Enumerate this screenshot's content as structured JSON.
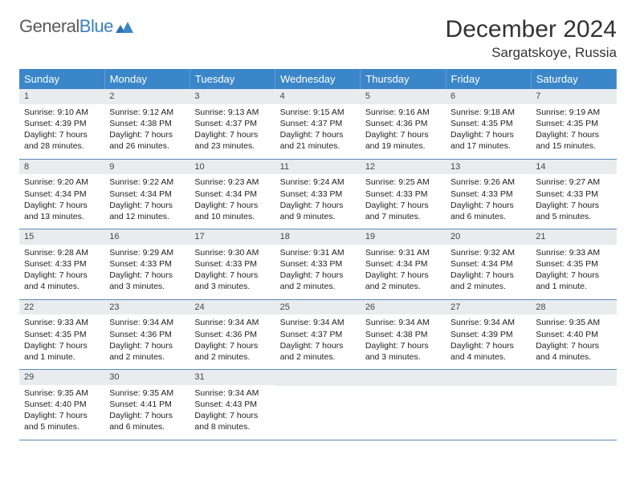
{
  "brand": {
    "word1": "General",
    "word2": "Blue"
  },
  "title": "December 2024",
  "location": "Sargatskoye, Russia",
  "colors": {
    "header_bg": "#3a86c8",
    "header_text": "#ffffff",
    "daynum_bg": "#e9ecef",
    "row_border": "#5a8ab8",
    "logo_gray": "#5a5a5a",
    "logo_blue": "#3a7fc4"
  },
  "typography": {
    "title_fontsize": 30,
    "location_fontsize": 17,
    "header_fontsize": 13,
    "cell_fontsize": 10.5
  },
  "weekdays": [
    "Sunday",
    "Monday",
    "Tuesday",
    "Wednesday",
    "Thursday",
    "Friday",
    "Saturday"
  ],
  "weeks": [
    [
      {
        "n": "1",
        "sr": "Sunrise: 9:10 AM",
        "ss": "Sunset: 4:39 PM",
        "dl": "Daylight: 7 hours and 28 minutes."
      },
      {
        "n": "2",
        "sr": "Sunrise: 9:12 AM",
        "ss": "Sunset: 4:38 PM",
        "dl": "Daylight: 7 hours and 26 minutes."
      },
      {
        "n": "3",
        "sr": "Sunrise: 9:13 AM",
        "ss": "Sunset: 4:37 PM",
        "dl": "Daylight: 7 hours and 23 minutes."
      },
      {
        "n": "4",
        "sr": "Sunrise: 9:15 AM",
        "ss": "Sunset: 4:37 PM",
        "dl": "Daylight: 7 hours and 21 minutes."
      },
      {
        "n": "5",
        "sr": "Sunrise: 9:16 AM",
        "ss": "Sunset: 4:36 PM",
        "dl": "Daylight: 7 hours and 19 minutes."
      },
      {
        "n": "6",
        "sr": "Sunrise: 9:18 AM",
        "ss": "Sunset: 4:35 PM",
        "dl": "Daylight: 7 hours and 17 minutes."
      },
      {
        "n": "7",
        "sr": "Sunrise: 9:19 AM",
        "ss": "Sunset: 4:35 PM",
        "dl": "Daylight: 7 hours and 15 minutes."
      }
    ],
    [
      {
        "n": "8",
        "sr": "Sunrise: 9:20 AM",
        "ss": "Sunset: 4:34 PM",
        "dl": "Daylight: 7 hours and 13 minutes."
      },
      {
        "n": "9",
        "sr": "Sunrise: 9:22 AM",
        "ss": "Sunset: 4:34 PM",
        "dl": "Daylight: 7 hours and 12 minutes."
      },
      {
        "n": "10",
        "sr": "Sunrise: 9:23 AM",
        "ss": "Sunset: 4:34 PM",
        "dl": "Daylight: 7 hours and 10 minutes."
      },
      {
        "n": "11",
        "sr": "Sunrise: 9:24 AM",
        "ss": "Sunset: 4:33 PM",
        "dl": "Daylight: 7 hours and 9 minutes."
      },
      {
        "n": "12",
        "sr": "Sunrise: 9:25 AM",
        "ss": "Sunset: 4:33 PM",
        "dl": "Daylight: 7 hours and 7 minutes."
      },
      {
        "n": "13",
        "sr": "Sunrise: 9:26 AM",
        "ss": "Sunset: 4:33 PM",
        "dl": "Daylight: 7 hours and 6 minutes."
      },
      {
        "n": "14",
        "sr": "Sunrise: 9:27 AM",
        "ss": "Sunset: 4:33 PM",
        "dl": "Daylight: 7 hours and 5 minutes."
      }
    ],
    [
      {
        "n": "15",
        "sr": "Sunrise: 9:28 AM",
        "ss": "Sunset: 4:33 PM",
        "dl": "Daylight: 7 hours and 4 minutes."
      },
      {
        "n": "16",
        "sr": "Sunrise: 9:29 AM",
        "ss": "Sunset: 4:33 PM",
        "dl": "Daylight: 7 hours and 3 minutes."
      },
      {
        "n": "17",
        "sr": "Sunrise: 9:30 AM",
        "ss": "Sunset: 4:33 PM",
        "dl": "Daylight: 7 hours and 3 minutes."
      },
      {
        "n": "18",
        "sr": "Sunrise: 9:31 AM",
        "ss": "Sunset: 4:33 PM",
        "dl": "Daylight: 7 hours and 2 minutes."
      },
      {
        "n": "19",
        "sr": "Sunrise: 9:31 AM",
        "ss": "Sunset: 4:34 PM",
        "dl": "Daylight: 7 hours and 2 minutes."
      },
      {
        "n": "20",
        "sr": "Sunrise: 9:32 AM",
        "ss": "Sunset: 4:34 PM",
        "dl": "Daylight: 7 hours and 2 minutes."
      },
      {
        "n": "21",
        "sr": "Sunrise: 9:33 AM",
        "ss": "Sunset: 4:35 PM",
        "dl": "Daylight: 7 hours and 1 minute."
      }
    ],
    [
      {
        "n": "22",
        "sr": "Sunrise: 9:33 AM",
        "ss": "Sunset: 4:35 PM",
        "dl": "Daylight: 7 hours and 1 minute."
      },
      {
        "n": "23",
        "sr": "Sunrise: 9:34 AM",
        "ss": "Sunset: 4:36 PM",
        "dl": "Daylight: 7 hours and 2 minutes."
      },
      {
        "n": "24",
        "sr": "Sunrise: 9:34 AM",
        "ss": "Sunset: 4:36 PM",
        "dl": "Daylight: 7 hours and 2 minutes."
      },
      {
        "n": "25",
        "sr": "Sunrise: 9:34 AM",
        "ss": "Sunset: 4:37 PM",
        "dl": "Daylight: 7 hours and 2 minutes."
      },
      {
        "n": "26",
        "sr": "Sunrise: 9:34 AM",
        "ss": "Sunset: 4:38 PM",
        "dl": "Daylight: 7 hours and 3 minutes."
      },
      {
        "n": "27",
        "sr": "Sunrise: 9:34 AM",
        "ss": "Sunset: 4:39 PM",
        "dl": "Daylight: 7 hours and 4 minutes."
      },
      {
        "n": "28",
        "sr": "Sunrise: 9:35 AM",
        "ss": "Sunset: 4:40 PM",
        "dl": "Daylight: 7 hours and 4 minutes."
      }
    ],
    [
      {
        "n": "29",
        "sr": "Sunrise: 9:35 AM",
        "ss": "Sunset: 4:40 PM",
        "dl": "Daylight: 7 hours and 5 minutes."
      },
      {
        "n": "30",
        "sr": "Sunrise: 9:35 AM",
        "ss": "Sunset: 4:41 PM",
        "dl": "Daylight: 7 hours and 6 minutes."
      },
      {
        "n": "31",
        "sr": "Sunrise: 9:34 AM",
        "ss": "Sunset: 4:43 PM",
        "dl": "Daylight: 7 hours and 8 minutes."
      },
      {
        "n": "",
        "sr": "",
        "ss": "",
        "dl": ""
      },
      {
        "n": "",
        "sr": "",
        "ss": "",
        "dl": ""
      },
      {
        "n": "",
        "sr": "",
        "ss": "",
        "dl": ""
      },
      {
        "n": "",
        "sr": "",
        "ss": "",
        "dl": ""
      }
    ]
  ]
}
